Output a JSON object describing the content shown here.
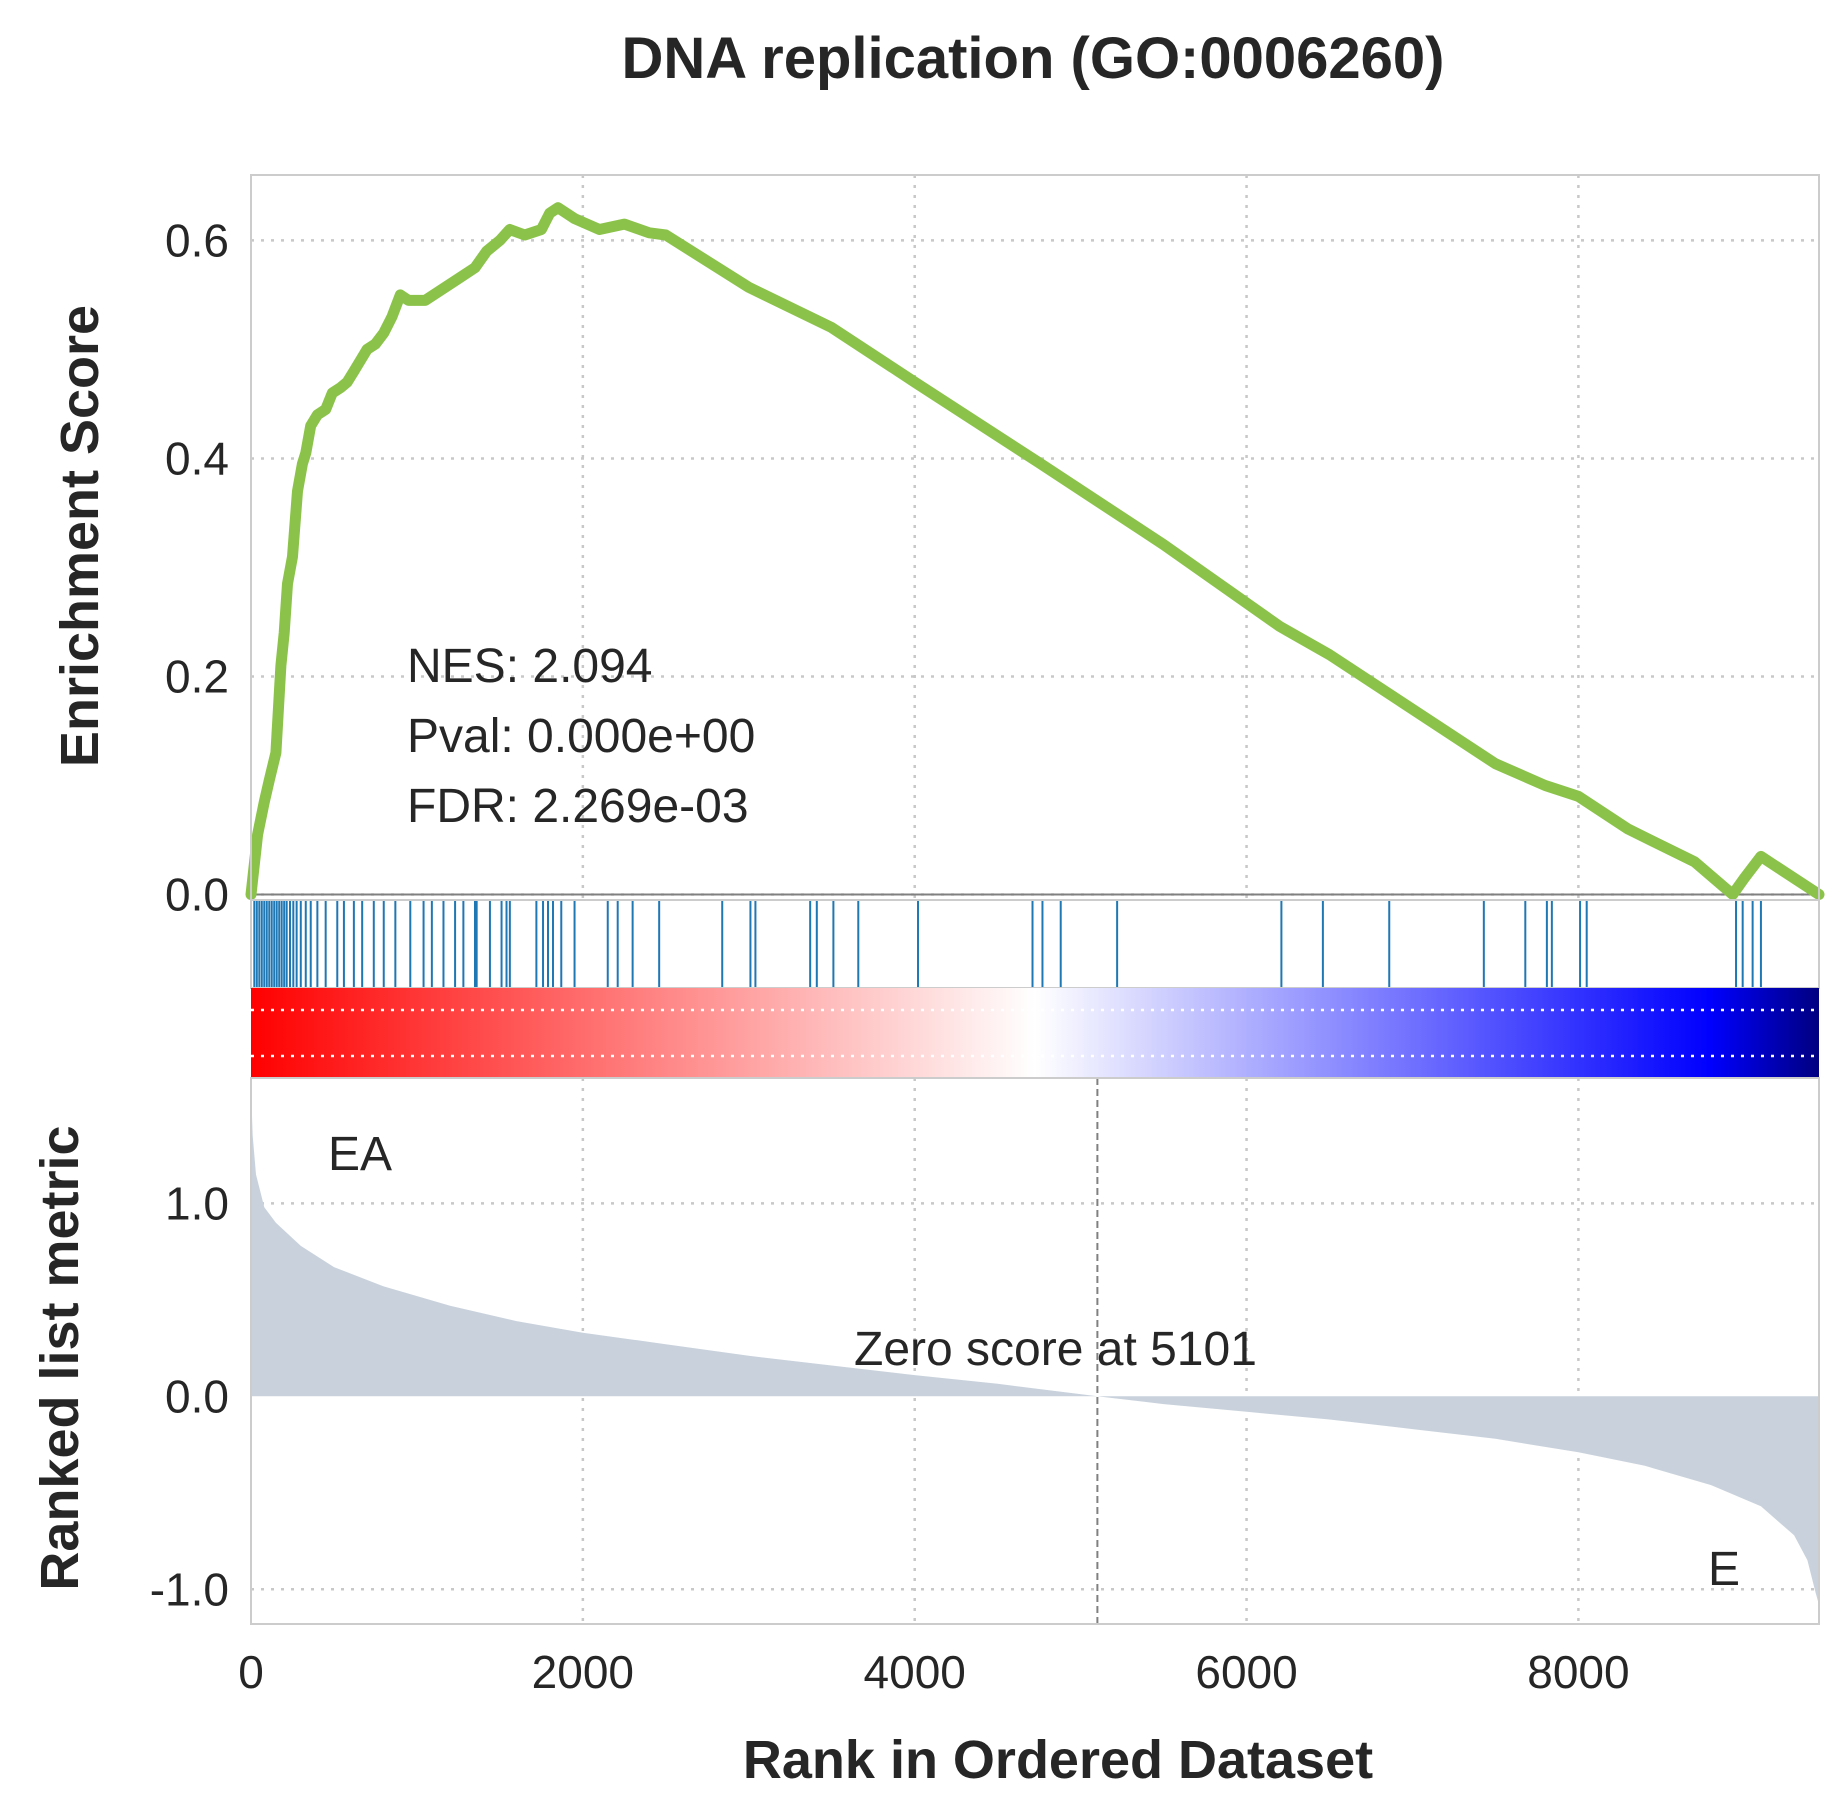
{
  "chart_data": {
    "type": "line",
    "title": "DNA replication (GO:0006260)",
    "xlabel": "Rank in Ordered Dataset",
    "xlim": [
      0,
      9450
    ],
    "x_ticks": [
      "0",
      "2000",
      "4000",
      "6000",
      "8000"
    ],
    "grid": true,
    "enrichment_panel": {
      "ylabel": "Enrichment Score",
      "ylim": [
        -0.005,
        0.66
      ],
      "y_ticks": [
        "0.0",
        "0.2",
        "0.4",
        "0.6"
      ],
      "line_color": "#8bc34a",
      "es_curve": [
        [
          0,
          0.0
        ],
        [
          40,
          0.055
        ],
        [
          80,
          0.085
        ],
        [
          110,
          0.105
        ],
        [
          150,
          0.13
        ],
        [
          180,
          0.21
        ],
        [
          200,
          0.24
        ],
        [
          220,
          0.285
        ],
        [
          250,
          0.31
        ],
        [
          280,
          0.37
        ],
        [
          310,
          0.395
        ],
        [
          330,
          0.405
        ],
        [
          360,
          0.43
        ],
        [
          400,
          0.44
        ],
        [
          450,
          0.445
        ],
        [
          490,
          0.46
        ],
        [
          540,
          0.465
        ],
        [
          580,
          0.47
        ],
        [
          620,
          0.48
        ],
        [
          660,
          0.49
        ],
        [
          700,
          0.5
        ],
        [
          750,
          0.505
        ],
        [
          800,
          0.515
        ],
        [
          850,
          0.53
        ],
        [
          900,
          0.55
        ],
        [
          950,
          0.545
        ],
        [
          1050,
          0.545
        ],
        [
          1150,
          0.555
        ],
        [
          1250,
          0.565
        ],
        [
          1350,
          0.575
        ],
        [
          1420,
          0.59
        ],
        [
          1500,
          0.6
        ],
        [
          1560,
          0.61
        ],
        [
          1650,
          0.605
        ],
        [
          1750,
          0.61
        ],
        [
          1800,
          0.625
        ],
        [
          1850,
          0.63
        ],
        [
          1950,
          0.62
        ],
        [
          2100,
          0.61
        ],
        [
          2250,
          0.615
        ],
        [
          2400,
          0.607
        ],
        [
          2500,
          0.605
        ],
        [
          3000,
          0.557
        ],
        [
          3500,
          0.52
        ],
        [
          4000,
          0.47
        ],
        [
          4750,
          0.396
        ],
        [
          5500,
          0.321
        ],
        [
          6200,
          0.246
        ],
        [
          6500,
          0.22
        ],
        [
          6900,
          0.18
        ],
        [
          7500,
          0.12
        ],
        [
          7800,
          0.1
        ],
        [
          8000,
          0.09
        ],
        [
          8300,
          0.06
        ],
        [
          8700,
          0.03
        ],
        [
          8930,
          0.0
        ],
        [
          9000,
          0.015
        ],
        [
          9050,
          0.025
        ],
        [
          9100,
          0.035
        ],
        [
          9450,
          0.0
        ]
      ],
      "annotations": [
        "NES: 2.094",
        "Pval: 0.000e+00",
        "FDR: 2.269e-03"
      ]
    },
    "hits_panel": {
      "color": "#1f77b4",
      "positions": [
        20,
        35,
        50,
        65,
        80,
        95,
        110,
        125,
        140,
        155,
        170,
        185,
        200,
        215,
        235,
        255,
        275,
        300,
        330,
        360,
        400,
        450,
        520,
        560,
        620,
        670,
        740,
        800,
        870,
        960,
        1040,
        1090,
        1160,
        1230,
        1280,
        1350,
        1360,
        1440,
        1510,
        1540,
        1560,
        1720,
        1760,
        1790,
        1820,
        1870,
        1950,
        2150,
        2210,
        2300,
        2460,
        2840,
        3010,
        3040,
        3370,
        3410,
        3510,
        3660,
        4020,
        4710,
        4770,
        4880,
        5220,
        6210,
        6460,
        6860,
        7430,
        7680,
        7810,
        7840,
        8010,
        8050,
        8950,
        8990,
        9050,
        9100
      ]
    },
    "colorbar": {
      "stops": [
        "#ff0000",
        "#ffffff",
        "#0000ff",
        "#000080"
      ]
    },
    "ranked_metric_panel": {
      "ylabel": "Ranked list metric",
      "ylim": [
        -1.18,
        1.65
      ],
      "y_ticks": [
        "-1.0",
        "0.0",
        "1.0"
      ],
      "fill_color": "#c9d2dc",
      "curve": [
        [
          0,
          1.6
        ],
        [
          10,
          1.35
        ],
        [
          30,
          1.15
        ],
        [
          80,
          0.98
        ],
        [
          150,
          0.9
        ],
        [
          300,
          0.78
        ],
        [
          500,
          0.67
        ],
        [
          800,
          0.57
        ],
        [
          1200,
          0.47
        ],
        [
          1600,
          0.39
        ],
        [
          2000,
          0.33
        ],
        [
          2500,
          0.27
        ],
        [
          3000,
          0.21
        ],
        [
          3500,
          0.16
        ],
        [
          4000,
          0.11
        ],
        [
          4500,
          0.065
        ],
        [
          5101,
          0.0
        ],
        [
          5500,
          -0.04
        ],
        [
          6000,
          -0.08
        ],
        [
          6500,
          -0.12
        ],
        [
          7000,
          -0.17
        ],
        [
          7500,
          -0.22
        ],
        [
          8000,
          -0.29
        ],
        [
          8400,
          -0.36
        ],
        [
          8800,
          -0.46
        ],
        [
          9100,
          -0.57
        ],
        [
          9300,
          -0.72
        ],
        [
          9380,
          -0.85
        ],
        [
          9430,
          -1.02
        ],
        [
          9450,
          -1.08
        ]
      ],
      "zero_crossing_rank": 5101,
      "zero_label": "Zero score at 5101",
      "pos_label": "EA",
      "pos_color": "#ff0000",
      "neg_label": "E",
      "neg_color": "#0000ff"
    }
  }
}
